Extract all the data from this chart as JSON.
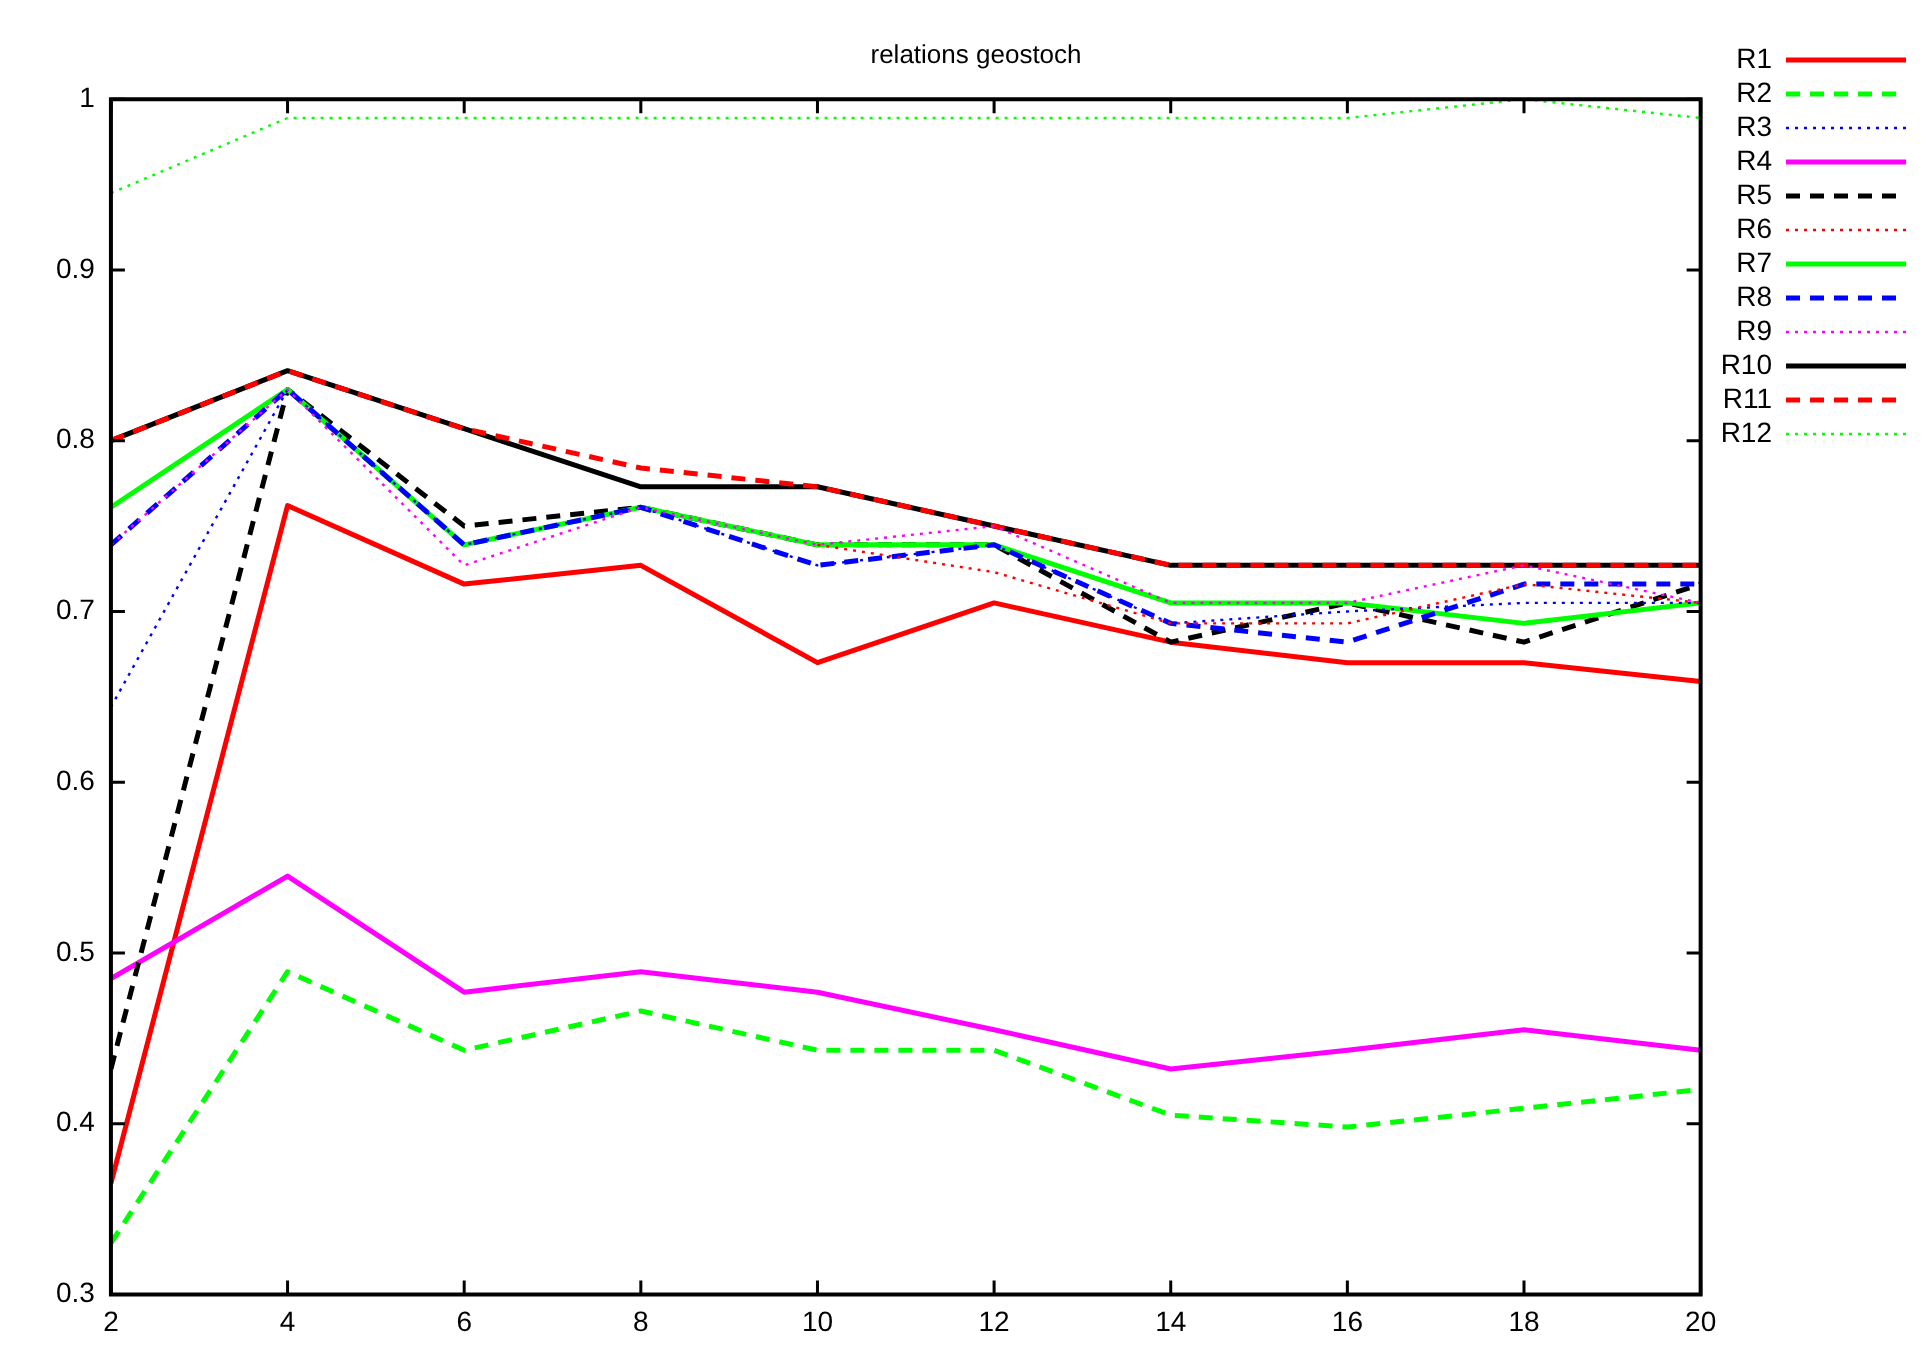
{
  "chart_data": {
    "type": "line",
    "title": "relations geostoch",
    "x": [
      2,
      4,
      6,
      8,
      10,
      12,
      14,
      16,
      18,
      20
    ],
    "xlim": [
      2,
      20
    ],
    "xticks": [
      2,
      4,
      6,
      8,
      10,
      12,
      14,
      16,
      18,
      20
    ],
    "ylim": [
      0.3,
      1
    ],
    "yticks": [
      0.3,
      0.4,
      0.5,
      0.6,
      0.7,
      0.8,
      0.9,
      1
    ],
    "grid": false,
    "legend": "right",
    "marker": "none",
    "series": [
      {
        "name": "R1",
        "color": "#ff0000",
        "line_style": "solid",
        "values": [
          0.365,
          0.762,
          0.716,
          0.727,
          0.67,
          0.705,
          0.682,
          0.67,
          0.67,
          0.659
        ]
      },
      {
        "name": "R2",
        "color": "#00ff00",
        "line_style": "dashed",
        "values": [
          0.33,
          0.489,
          0.443,
          0.466,
          0.443,
          0.443,
          0.405,
          0.398,
          0.409,
          0.42
        ]
      },
      {
        "name": "R3",
        "color": "#0000ff",
        "line_style": "dotted",
        "values": [
          0.644,
          0.83,
          0.739,
          0.761,
          0.727,
          0.739,
          0.693,
          0.7,
          0.705,
          0.705
        ]
      },
      {
        "name": "R4",
        "color": "#ff00ff",
        "line_style": "solid",
        "values": [
          0.485,
          0.545,
          0.477,
          0.489,
          0.477,
          0.455,
          0.432,
          0.443,
          0.455,
          0.443
        ]
      },
      {
        "name": "R5",
        "color": "#000000",
        "line_style": "dashed",
        "values": [
          0.432,
          0.83,
          0.75,
          0.761,
          0.739,
          0.739,
          0.682,
          0.705,
          0.682,
          0.716
        ]
      },
      {
        "name": "R6",
        "color": "#ff0000",
        "line_style": "dotted",
        "values": [
          null,
          null,
          null,
          null,
          0.739,
          0.723,
          0.693,
          0.693,
          0.716,
          0.705
        ]
      },
      {
        "name": "R7",
        "color": "#00ff00",
        "line_style": "solid",
        "values": [
          0.761,
          0.83,
          0.739,
          0.761,
          0.739,
          0.739,
          0.705,
          0.705,
          0.693,
          0.705
        ]
      },
      {
        "name": "R8",
        "color": "#0000ff",
        "line_style": "dashed",
        "values": [
          0.739,
          0.83,
          0.739,
          0.761,
          0.727,
          0.739,
          0.693,
          0.682,
          0.716,
          0.716
        ]
      },
      {
        "name": "R9",
        "color": "#ff00ff",
        "line_style": "dotted",
        "values": [
          0.739,
          0.83,
          0.727,
          0.761,
          0.739,
          0.75,
          0.705,
          0.705,
          0.727,
          0.705
        ]
      },
      {
        "name": "R10",
        "color": "#000000",
        "line_style": "solid",
        "values": [
          0.8,
          0.841,
          0.807,
          0.773,
          0.773,
          0.75,
          0.727,
          0.727,
          0.727,
          0.727
        ]
      },
      {
        "name": "R11",
        "color": "#ff0000",
        "line_style": "dashed",
        "values": [
          0.8,
          0.841,
          0.807,
          0.784,
          0.773,
          0.75,
          0.727,
          0.727,
          0.727,
          0.727
        ]
      },
      {
        "name": "R12",
        "color": "#00ff00",
        "line_style": "dotted",
        "values": [
          0.945,
          0.989,
          0.989,
          0.989,
          0.989,
          0.989,
          0.989,
          0.989,
          1.0,
          0.989
        ]
      }
    ]
  }
}
